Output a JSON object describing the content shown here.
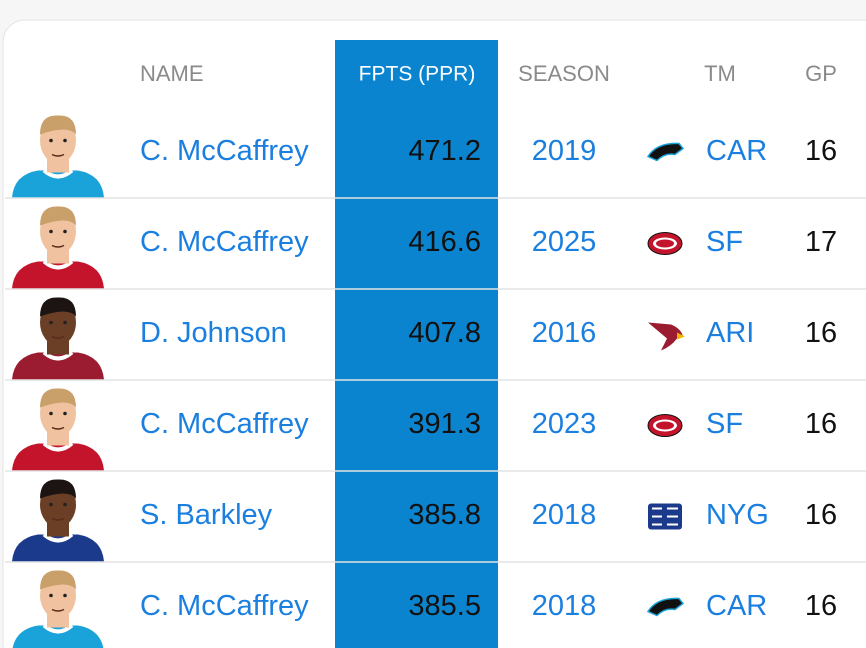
{
  "table": {
    "columns": [
      "NAME",
      "FPTS (PPR)",
      "SEASON",
      "TM",
      "GP"
    ],
    "rows": [
      [
        "C. McCaffrey",
        471.2,
        2019,
        "CAR",
        16
      ],
      [
        "C. McCaffrey",
        416.6,
        2025,
        "SF",
        17
      ],
      [
        "D. Johnson",
        407.8,
        2016,
        "ARI",
        16
      ],
      [
        "C. McCaffrey",
        391.3,
        2023,
        "SF",
        16
      ],
      [
        "S. Barkley",
        385.8,
        2018,
        "NYG",
        16
      ],
      [
        "C. McCaffrey",
        385.5,
        2018,
        "CAR",
        16
      ]
    ]
  }
}
